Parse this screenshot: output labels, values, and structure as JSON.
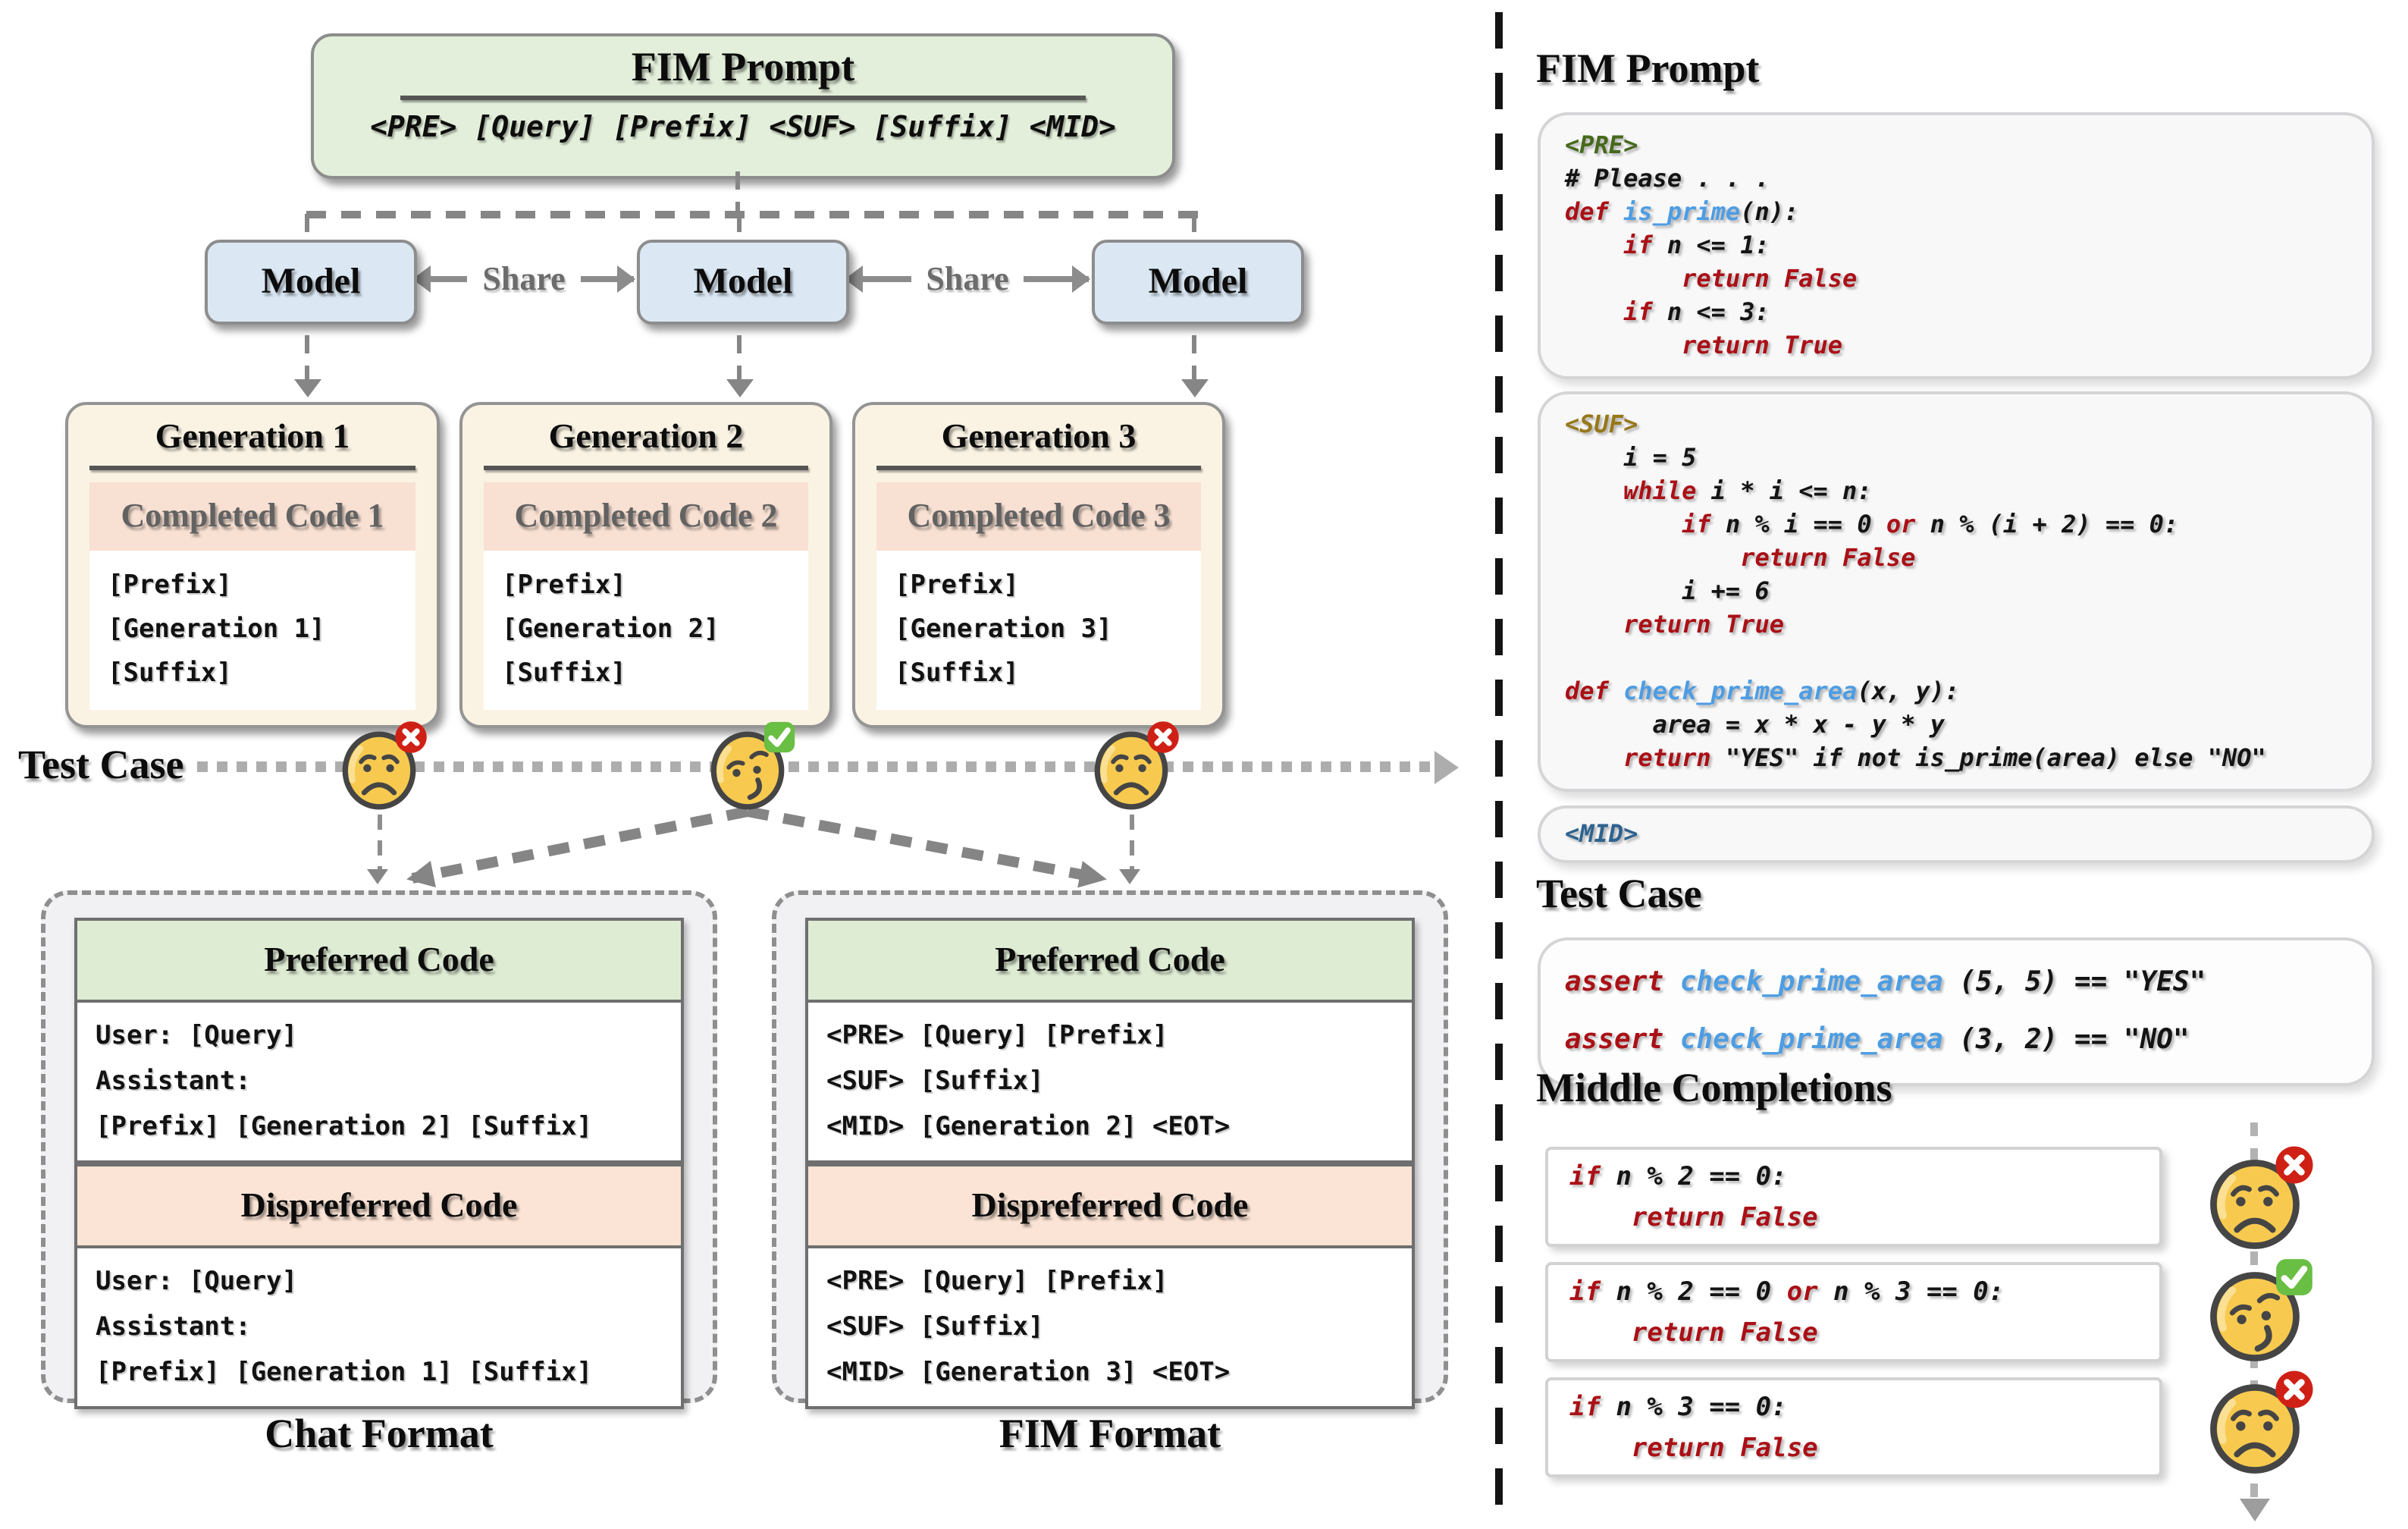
{
  "left_panel": {
    "fim_prompt": {
      "title": "FIM Prompt",
      "template": "<PRE> [Query] [Prefix] <SUF> [Suffix] <MID>"
    },
    "model_label": "Model",
    "share_label": "Share",
    "generations": [
      {
        "title": "Generation 1",
        "subtitle": "Completed Code 1",
        "code_lines": [
          "[Prefix]",
          "[Generation 1]",
          "[Suffix]"
        ],
        "verdict": "fail"
      },
      {
        "title": "Generation 2",
        "subtitle": "Completed Code 2",
        "code_lines": [
          "[Prefix]",
          "[Generation 2]",
          "[Suffix]"
        ],
        "verdict": "pass"
      },
      {
        "title": "Generation 3",
        "subtitle": "Completed Code 3",
        "code_lines": [
          "[Prefix]",
          "[Generation 3]",
          "[Suffix]"
        ],
        "verdict": "fail"
      }
    ],
    "test_case_label": "Test Case",
    "chat_format": {
      "caption": "Chat Format",
      "preferred_title": "Preferred Code",
      "preferred_lines": [
        "User: [Query]",
        "Assistant:",
        "[Prefix] [Generation 2] [Suffix]"
      ],
      "dispreferred_title": "Dispreferred Code",
      "dispreferred_lines": [
        "User: [Query]",
        "Assistant:",
        "[Prefix] [Generation 1] [Suffix]"
      ]
    },
    "fim_format": {
      "caption": "FIM Format",
      "preferred_title": "Preferred Code",
      "preferred_lines": [
        "<PRE> [Query] [Prefix]",
        "<SUF> [Suffix]",
        "<MID> [Generation 2] <EOT>"
      ],
      "dispreferred_title": "Dispreferred Code",
      "dispreferred_lines": [
        "<PRE> [Query] [Prefix]",
        "<SUF> [Suffix]",
        "<MID> [Generation 3] <EOT>"
      ]
    }
  },
  "right_panel": {
    "fim_prompt_heading": "FIM Prompt",
    "pre_block": [
      [
        [
          "green",
          "<PRE>"
        ]
      ],
      [
        [
          "plain",
          "# Please . . ."
        ]
      ],
      [
        [
          "red",
          "def "
        ],
        [
          "blue",
          "is_prime"
        ],
        [
          "plain",
          "(n):"
        ]
      ],
      [
        [
          "plain",
          "    "
        ],
        [
          "red",
          "if "
        ],
        [
          "plain",
          "n <= 1:"
        ]
      ],
      [
        [
          "plain",
          "        "
        ],
        [
          "red",
          "return False"
        ]
      ],
      [
        [
          "plain",
          "    "
        ],
        [
          "red",
          "if "
        ],
        [
          "plain",
          "n <= 3:"
        ]
      ],
      [
        [
          "plain",
          "        "
        ],
        [
          "red",
          "return True"
        ]
      ]
    ],
    "suf_block": [
      [
        [
          "gold",
          "<SUF>"
        ]
      ],
      [
        [
          "plain",
          "    i = 5"
        ]
      ],
      [
        [
          "plain",
          "    "
        ],
        [
          "red",
          "while "
        ],
        [
          "plain",
          "i * i <= n:"
        ]
      ],
      [
        [
          "plain",
          "        "
        ],
        [
          "red",
          "if "
        ],
        [
          "plain",
          "n % i == 0 "
        ],
        [
          "red",
          "or"
        ],
        [
          "plain",
          " n % (i + 2) == 0:"
        ]
      ],
      [
        [
          "plain",
          "            "
        ],
        [
          "red",
          "return False"
        ]
      ],
      [
        [
          "plain",
          "        i += 6"
        ]
      ],
      [
        [
          "plain",
          "    "
        ],
        [
          "red",
          "return True"
        ]
      ],
      [],
      [
        [
          "red",
          "def "
        ],
        [
          "blue",
          "check_prime_area"
        ],
        [
          "plain",
          "(x, y):"
        ]
      ],
      [
        [
          "plain",
          "      area = x * x - y * y"
        ]
      ],
      [
        [
          "plain",
          "    "
        ],
        [
          "red",
          "return "
        ],
        [
          "plain",
          "\"YES\" if not is_prime(area) else \"NO\""
        ]
      ]
    ],
    "mid_block": [
      [
        [
          "steel",
          "<MID>"
        ]
      ]
    ],
    "test_case_heading": "Test Case",
    "test_block": [
      [
        [
          "red",
          "assert "
        ],
        [
          "blue",
          "check_prime_area"
        ],
        [
          "plain",
          " (5, 5) == \"YES\""
        ]
      ],
      [
        [
          "red",
          "assert "
        ],
        [
          "blue",
          "check_prime_area"
        ],
        [
          "plain",
          " (3, 2) == \"NO\""
        ]
      ]
    ],
    "middle_completions_heading": "Middle Completions",
    "completions": [
      {
        "verdict": "fail",
        "lines": [
          [
            [
              "red",
              "if "
            ],
            [
              "plain",
              "n % 2 == 0:"
            ]
          ],
          [
            [
              "plain",
              "    "
            ],
            [
              "red",
              "return False"
            ]
          ]
        ]
      },
      {
        "verdict": "pass",
        "lines": [
          [
            [
              "red",
              "if "
            ],
            [
              "plain",
              "n % 2 == 0 "
            ],
            [
              "red",
              "or"
            ],
            [
              "plain",
              " n % 3 == 0:"
            ]
          ],
          [
            [
              "plain",
              "    "
            ],
            [
              "red",
              "return False"
            ]
          ]
        ]
      },
      {
        "verdict": "fail",
        "lines": [
          [
            [
              "red",
              "if "
            ],
            [
              "plain",
              "n % 3 == 0:"
            ]
          ],
          [
            [
              "plain",
              "    "
            ],
            [
              "red",
              "return False"
            ]
          ]
        ]
      }
    ]
  },
  "icons": {
    "pass_badge": "check-badge",
    "fail_badge": "x-badge",
    "pass_face": "smirk-face",
    "fail_face": "sad-face"
  },
  "colors": {
    "keyword_red": "#AA1016",
    "function_blue": "#4D9DE3",
    "pre_tag_green": "#47691C",
    "suf_tag_gold": "#97781A",
    "mid_tag_blue": "#2E6390",
    "pass_green": "#69BE44",
    "fail_red": "#CF2015"
  }
}
